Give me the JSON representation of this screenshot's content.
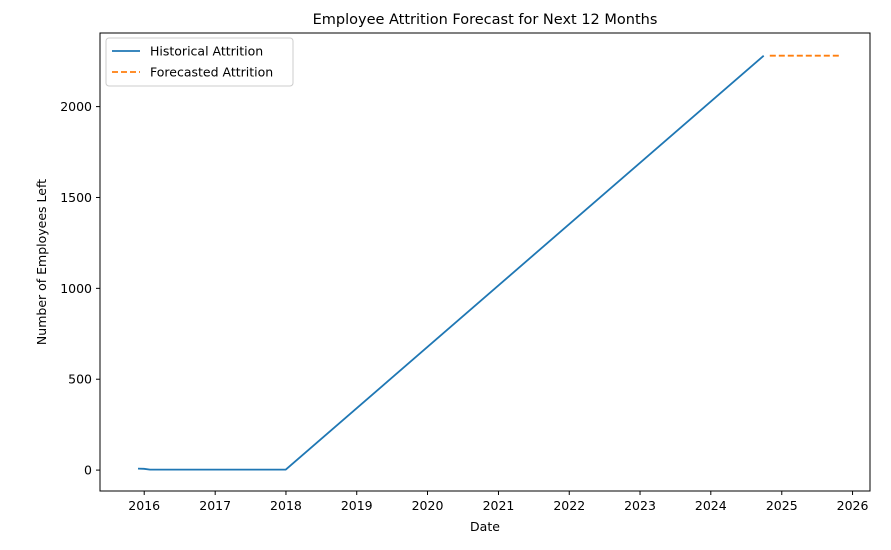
{
  "chart_data": {
    "type": "line",
    "title": "Employee Attrition Forecast for Next 12 Months",
    "xlabel": "Date",
    "ylabel": "Number of Employees Left",
    "xlim": [
      "2015-05-18",
      "2026-04-01"
    ],
    "ylim": [
      -115,
      2405
    ],
    "x_ticks": [
      "2016",
      "2017",
      "2018",
      "2019",
      "2020",
      "2021",
      "2022",
      "2023",
      "2024",
      "2025",
      "2026"
    ],
    "y_ticks": [
      0,
      500,
      1000,
      1500,
      2000
    ],
    "grid": false,
    "legend": "top-left",
    "series": [
      {
        "name": "Historical Attrition",
        "color": "#1f77b4",
        "style": "solid",
        "x": [
          "2015-11-30",
          "2015-12-31",
          "2016-01-31",
          "2017-12-31",
          "2024-09-30"
        ],
        "y": [
          8,
          7,
          3,
          3,
          2280
        ]
      },
      {
        "name": "Forecasted Attrition",
        "color": "#ff7f0e",
        "style": "dashed",
        "x": [
          "2024-10-31",
          "2024-11-30",
          "2024-12-31",
          "2025-01-31",
          "2025-02-28",
          "2025-03-31",
          "2025-04-30",
          "2025-05-31",
          "2025-06-30",
          "2025-07-31",
          "2025-08-31",
          "2025-09-30",
          "2025-10-31"
        ],
        "y": [
          2280,
          2280,
          2280,
          2280,
          2280,
          2280,
          2280,
          2280,
          2280,
          2280,
          2280,
          2280,
          2280
        ]
      }
    ]
  }
}
